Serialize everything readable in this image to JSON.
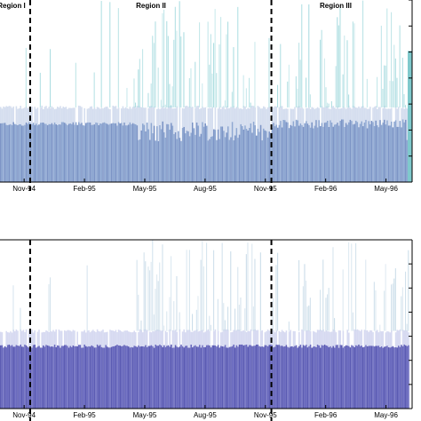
{
  "chart_data": [
    {
      "type": "bar",
      "title": "",
      "xlabel": "",
      "ylabel": "",
      "x_tick_labels": [
        "Nov-94",
        "Feb-95",
        "May-95",
        "Aug-95",
        "Nov-95",
        "Feb-96",
        "May-96"
      ],
      "x_ticks_month_index": [
        0,
        3,
        6,
        9,
        12,
        15,
        18
      ],
      "x_range_month_index": [
        -1.2,
        19.3
      ],
      "regions": [
        {
          "label": "Region  I",
          "start_month_index": -1.2,
          "end_month_index": 0.3
        },
        {
          "label": "Region II",
          "start_month_index": 0.3,
          "end_month_index": 12.3
        },
        {
          "label": "Region III",
          "start_month_index": 12.3,
          "end_month_index": 19.3
        }
      ],
      "region_boundaries_month_index": [
        0.3,
        12.3
      ],
      "ylim": [
        0,
        1
      ],
      "series": [
        {
          "values_summary": "dense bars with baseline level ~0.32 and spikes up to 1.0",
          "base_level": 0.32,
          "mid_level": 0.41,
          "color": "#8fa8d2"
        },
        {
          "values_summary": "light spikes",
          "color": "#a9dce0"
        }
      ]
    },
    {
      "type": "bar",
      "title": "",
      "xlabel": "",
      "ylabel": "",
      "x_tick_labels": [
        "Nov-94",
        "Feb-95",
        "May-95",
        "Aug-95",
        "Nov-95",
        "Feb-96",
        "May-96"
      ],
      "x_ticks_month_index": [
        0,
        3,
        6,
        9,
        12,
        15,
        18
      ],
      "x_range_month_index": [
        -1.2,
        19.3
      ],
      "region_boundaries_month_index": [
        0.3,
        12.3
      ],
      "ylim": [
        0,
        1
      ],
      "series": [
        {
          "values_summary": "dense bars with baseline level ~0.37 and spikes up to 1.0",
          "base_level": 0.37,
          "mid_level": 0.46,
          "color": "#6b6bbf"
        },
        {
          "values_summary": "light spikes",
          "color": "#c8dbe8"
        }
      ]
    }
  ],
  "colors": {
    "panel1_base": "#8fa8d2",
    "panel1_base_dark": "#7d95c6",
    "panel1_mid": "#c7d3ea",
    "panel1_spike": "#a9dce0",
    "panel1_spike_strong": "#7fc9cc",
    "panel2_base": "#6b6bbf",
    "panel2_base_dark": "#5c5cb3",
    "panel2_mid": "#c9cdec",
    "panel2_spike": "#c8dbe8"
  }
}
